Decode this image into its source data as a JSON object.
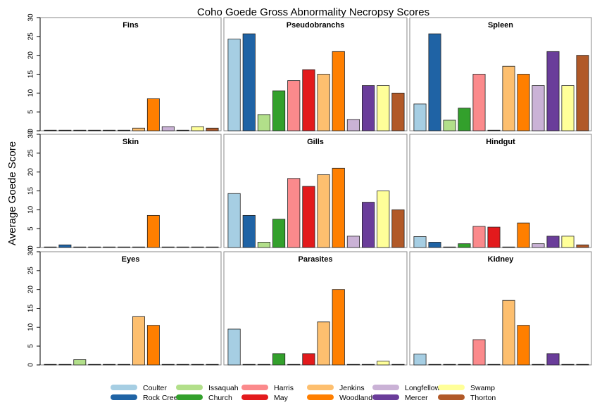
{
  "title": "Coho Goede Gross Abnormality Necropsy Scores",
  "ylabel": "Average Goede Score",
  "legend": {
    "placement": "bottom",
    "labels": [
      "Coulter",
      "Rock Creek",
      "Issaquah",
      "Church",
      "Harris",
      "May",
      "Jenkins",
      "Woodland",
      "Longfellow",
      "Mercer",
      "Swamp",
      "Thorton"
    ]
  },
  "colors": [
    "#a6cee3",
    "#1f63a5",
    "#b2df8a",
    "#33a02c",
    "#fb8a8c",
    "#e31a1c",
    "#fdbf6f",
    "#ff7f00",
    "#cab2d6",
    "#6a3d9a",
    "#ffff99",
    "#b15928"
  ],
  "y_ticks": [
    "0",
    "5",
    "10",
    "15",
    "20",
    "25",
    "30"
  ],
  "chart_data": {
    "type": "bar",
    "layout": "3x3 small multiples",
    "ylim": [
      0,
      30
    ],
    "grid": false,
    "categories": [
      "Coulter",
      "Rock Creek",
      "Issaquah",
      "Church",
      "Harris",
      "May",
      "Jenkins",
      "Woodland",
      "Longfellow",
      "Mercer",
      "Swamp",
      "Thorton"
    ],
    "panels": [
      {
        "title": "Fins",
        "values": [
          0,
          0,
          0,
          0,
          0,
          0,
          0.7,
          8.5,
          1.1,
          0,
          1.1,
          0.7
        ]
      },
      {
        "title": "Pseudobranchs",
        "values": [
          24.3,
          25.7,
          4.3,
          10.6,
          13.3,
          16.2,
          15.0,
          21.0,
          3.0,
          12.0,
          12.0,
          10.0
        ]
      },
      {
        "title": "Spleen",
        "values": [
          7.1,
          25.7,
          2.8,
          6.0,
          15.0,
          0,
          17.1,
          15.0,
          12.0,
          21.0,
          12.0,
          20.0
        ]
      },
      {
        "title": "Skin",
        "values": [
          0,
          0.7,
          0,
          0,
          0,
          0,
          0,
          8.5,
          0,
          0,
          0,
          0
        ]
      },
      {
        "title": "Gills",
        "values": [
          14.3,
          8.5,
          1.4,
          7.5,
          18.3,
          16.2,
          19.3,
          21.0,
          3.0,
          12.0,
          15.0,
          10.0
        ]
      },
      {
        "title": "Hindgut",
        "values": [
          2.9,
          1.4,
          0,
          1.0,
          5.6,
          5.4,
          0,
          6.5,
          1.0,
          3.0,
          3.0,
          0.7
        ]
      },
      {
        "title": "Eyes",
        "values": [
          0,
          0,
          1.4,
          0,
          0,
          0,
          12.8,
          10.5,
          0,
          0,
          0,
          0
        ]
      },
      {
        "title": "Parasites",
        "values": [
          9.5,
          0,
          0,
          3.0,
          0,
          3.0,
          11.4,
          20.0,
          0,
          0,
          1.0,
          0
        ]
      },
      {
        "title": "Kidney",
        "values": [
          2.9,
          0,
          0,
          0,
          6.7,
          0,
          17.1,
          10.5,
          0,
          3.0,
          0,
          0
        ]
      }
    ]
  }
}
